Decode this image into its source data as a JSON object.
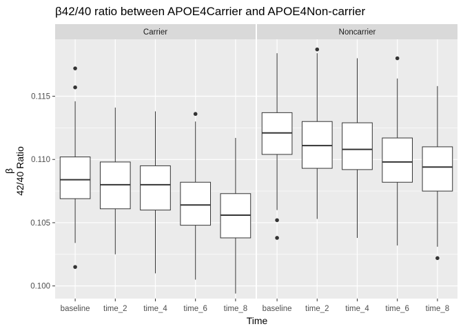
{
  "chart_data": {
    "type": "boxplot",
    "title": "β42/40 ratio between APOE4Carrier and APOE4Non-carrier",
    "xlabel": "Time",
    "ylabel": [
      "β",
      "42/40 Ratio"
    ],
    "categories": [
      "baseline",
      "time_2",
      "time_4",
      "time_6",
      "time_8"
    ],
    "yticks": [
      0.1,
      0.105,
      0.11,
      0.115
    ],
    "ytick_labels": [
      "0.100",
      "0.105",
      "0.110",
      "0.115"
    ],
    "ylim": [
      0.099,
      0.1195
    ],
    "grid": true,
    "panels": [
      {
        "name": "Carrier",
        "boxes": [
          {
            "category": "baseline",
            "min": 0.1034,
            "q1": 0.1069,
            "median": 0.1084,
            "q3": 0.1102,
            "max": 0.1146,
            "outliers": [
              0.1172,
              0.1157,
              0.1015
            ]
          },
          {
            "category": "time_2",
            "min": 0.1025,
            "q1": 0.1061,
            "median": 0.108,
            "q3": 0.1098,
            "max": 0.1141,
            "outliers": []
          },
          {
            "category": "time_4",
            "min": 0.101,
            "q1": 0.106,
            "median": 0.108,
            "q3": 0.1095,
            "max": 0.1138,
            "outliers": []
          },
          {
            "category": "time_6",
            "min": 0.1005,
            "q1": 0.1048,
            "median": 0.1064,
            "q3": 0.1082,
            "max": 0.113,
            "outliers": [
              0.1136
            ]
          },
          {
            "category": "time_8",
            "min": 0.0994,
            "q1": 0.1038,
            "median": 0.1056,
            "q3": 0.1073,
            "max": 0.1117,
            "outliers": []
          }
        ]
      },
      {
        "name": "Noncarrier",
        "boxes": [
          {
            "category": "baseline",
            "min": 0.106,
            "q1": 0.1104,
            "median": 0.1121,
            "q3": 0.1137,
            "max": 0.1184,
            "outliers": [
              0.1052,
              0.1038
            ]
          },
          {
            "category": "time_2",
            "min": 0.1053,
            "q1": 0.1093,
            "median": 0.1111,
            "q3": 0.113,
            "max": 0.1184,
            "outliers": [
              0.1187
            ]
          },
          {
            "category": "time_4",
            "min": 0.1038,
            "q1": 0.1092,
            "median": 0.1108,
            "q3": 0.1129,
            "max": 0.118,
            "outliers": []
          },
          {
            "category": "time_6",
            "min": 0.1032,
            "q1": 0.1082,
            "median": 0.1098,
            "q3": 0.1117,
            "max": 0.1164,
            "outliers": [
              0.118
            ]
          },
          {
            "category": "time_8",
            "min": 0.1031,
            "q1": 0.1075,
            "median": 0.1094,
            "q3": 0.111,
            "max": 0.1158,
            "outliers": [
              0.1022
            ]
          }
        ]
      }
    ]
  },
  "colors": {
    "panel_background": "#ebebeb",
    "grid_major": "#ffffff",
    "strip_background": "#d9d9d9",
    "box_fill": "#ffffff",
    "box_line": "#333333",
    "outlier": "#333333",
    "tick": "#333333",
    "tick_label": "#4d4d4d"
  }
}
